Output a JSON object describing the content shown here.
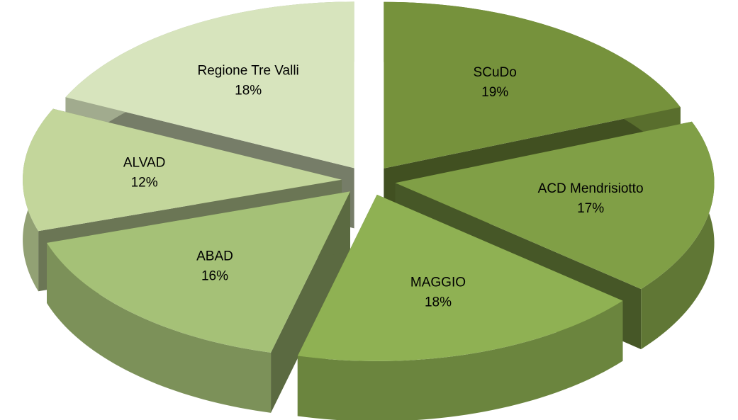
{
  "chart_data": {
    "type": "pie3d",
    "categories": [
      "SCuDo",
      "ACD Mendrisiotto",
      "MAGGIO",
      "ABAD",
      "ALVAD",
      "Regione Tre Valli"
    ],
    "values": [
      19,
      17,
      18,
      16,
      12,
      18
    ],
    "value_labels": [
      "19%",
      "17%",
      "18%",
      "16%",
      "12%",
      "18%"
    ],
    "colors": [
      "#76923c",
      "#809f46",
      "#8fb153",
      "#a5c177",
      "#c3d69b",
      "#d7e4bd"
    ]
  }
}
